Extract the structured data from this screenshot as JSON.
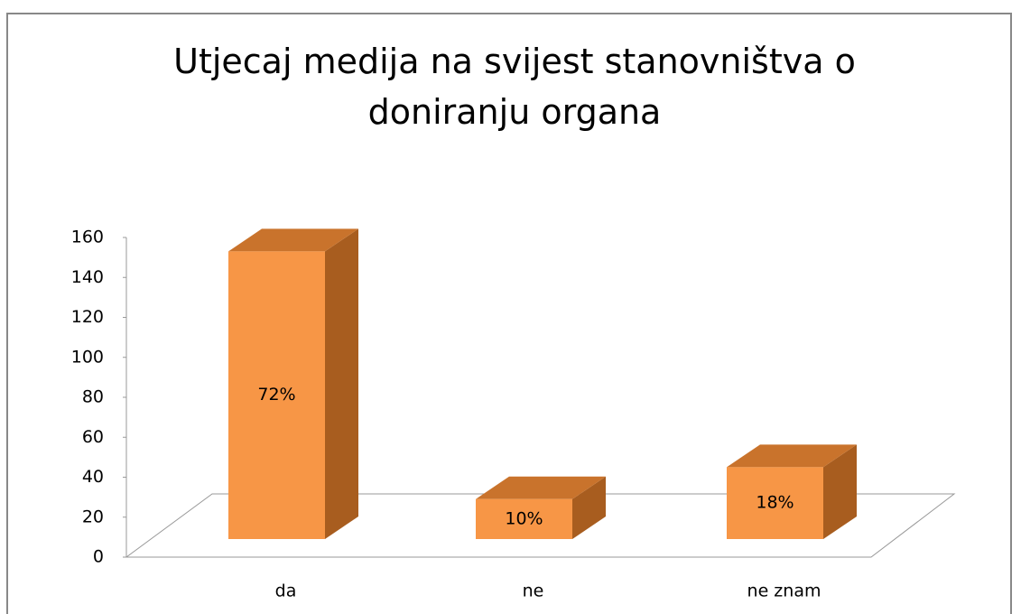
{
  "chart_data": {
    "type": "bar3d",
    "title": "Utjecaj medija na svijest stanovništva o doniranju organa",
    "categories": [
      "da",
      "ne",
      "ne znam"
    ],
    "values": [
      144,
      20,
      36
    ],
    "labels": [
      "72%",
      "10%",
      "18%"
    ],
    "color": "#f79646",
    "ylim": [
      0,
      160
    ],
    "yticks": [
      0,
      20,
      40,
      60,
      80,
      100,
      120,
      140,
      160
    ]
  }
}
